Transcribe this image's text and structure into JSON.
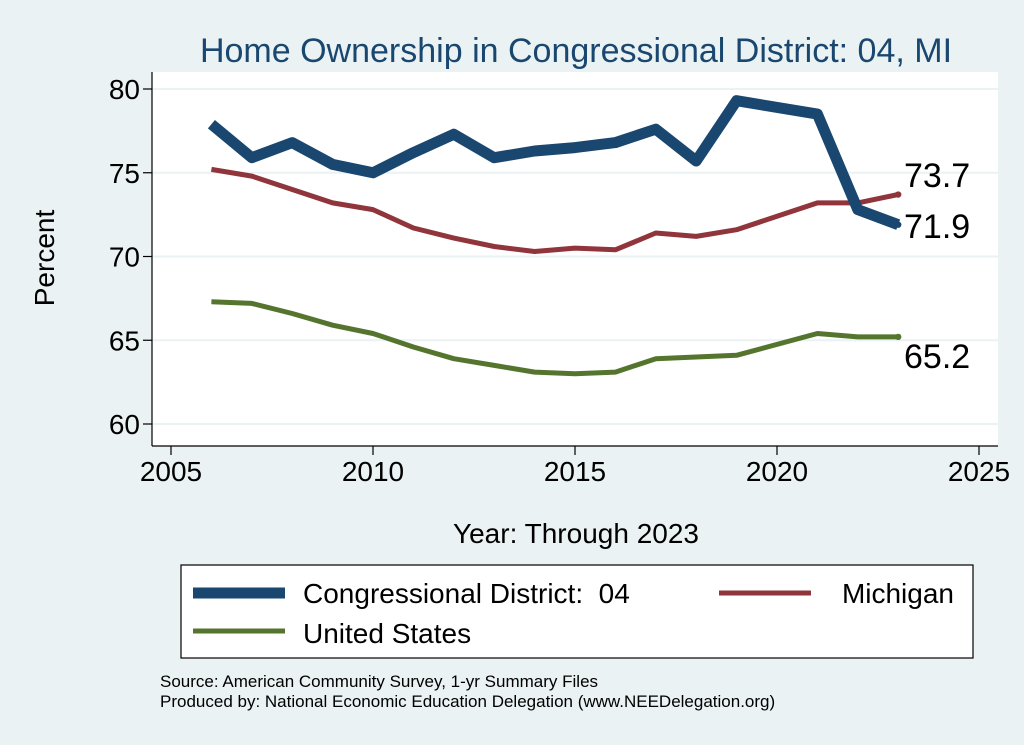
{
  "chart_data": {
    "type": "line",
    "title": "Home Ownership in Congressional District:  04, MI",
    "xlabel": "Year: Through 2023",
    "ylabel": "Percent",
    "xlim": [
      2005,
      2025
    ],
    "ylim": [
      60,
      80
    ],
    "x_ticks": [
      2005,
      2010,
      2015,
      2020,
      2025
    ],
    "y_ticks": [
      60,
      65,
      70,
      75,
      80
    ],
    "grid": "horizontal",
    "legend_position": "bottom",
    "x": [
      2006,
      2007,
      2008,
      2009,
      2010,
      2011,
      2012,
      2013,
      2014,
      2015,
      2016,
      2017,
      2018,
      2019,
      2021,
      2022,
      2023
    ],
    "series": [
      {
        "name": "Congressional District:  04",
        "color": "#1a476f",
        "values": [
          77.9,
          75.9,
          76.8,
          75.5,
          75.0,
          76.2,
          77.3,
          75.9,
          76.3,
          76.5,
          76.8,
          77.6,
          75.7,
          79.3,
          78.5,
          72.8,
          71.9
        ],
        "end_label": "71.9"
      },
      {
        "name": "Michigan",
        "color": "#90353b",
        "values": [
          75.2,
          74.8,
          74.0,
          73.2,
          72.8,
          71.7,
          71.1,
          70.6,
          70.3,
          70.5,
          70.4,
          71.4,
          71.2,
          71.6,
          73.2,
          73.2,
          73.7
        ],
        "end_label": "73.7"
      },
      {
        "name": "United States",
        "color": "#55752f",
        "values": [
          67.3,
          67.2,
          66.6,
          65.9,
          65.4,
          64.6,
          63.9,
          63.5,
          63.1,
          63.0,
          63.1,
          63.9,
          64.0,
          64.1,
          65.4,
          65.2,
          65.2
        ],
        "end_label": "65.2"
      }
    ]
  },
  "source_line": "Source: American Community Survey, 1-yr Summary Files",
  "produced_line": "Produced by: National Economic Education Delegation (www.NEEDelegation.org)"
}
